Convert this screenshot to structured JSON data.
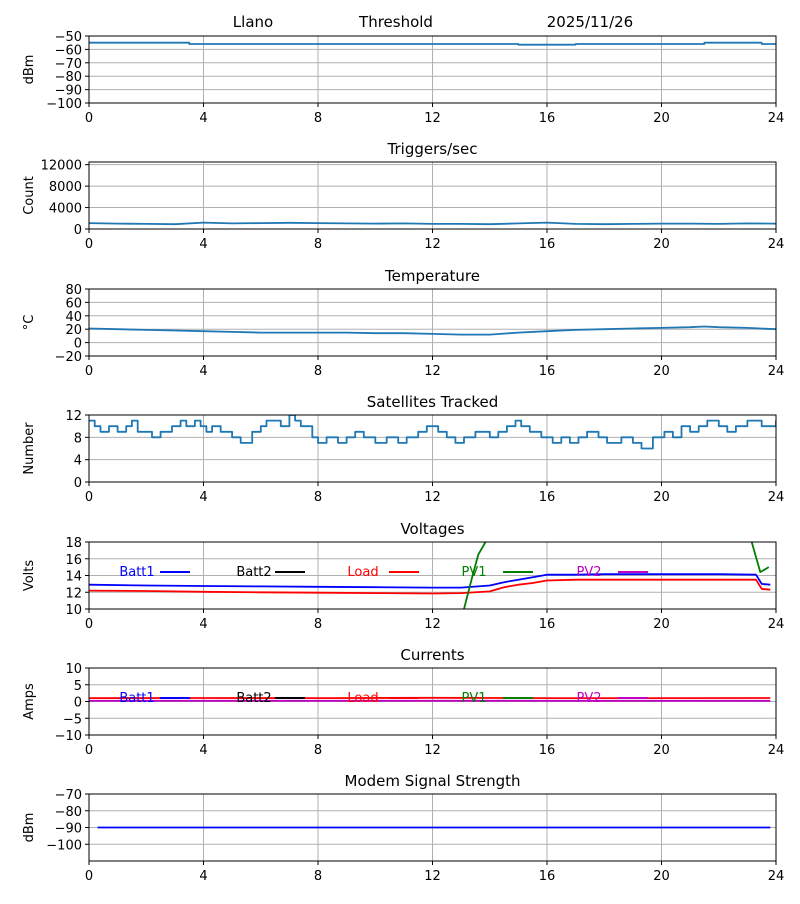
{
  "header": {
    "station": "Llano",
    "mode": "Threshold",
    "date": "2025/11/26"
  },
  "chart_data": [
    {
      "id": "threshold",
      "type": "line",
      "title": "",
      "xlabel": "",
      "ylabel": "dBm",
      "xlim": [
        0,
        24
      ],
      "ylim": [
        -100,
        -50
      ],
      "xticks": [
        "0",
        "4",
        "8",
        "12",
        "16",
        "20",
        "24"
      ],
      "yticks": [
        "−50",
        "−60",
        "−70",
        "−80",
        "−90",
        "−100"
      ],
      "ytick_values": [
        -50,
        -60,
        -70,
        -80,
        -90,
        -100
      ],
      "grid": true,
      "series": [
        {
          "color": "#1f77b4",
          "x": [
            0,
            3.5,
            3.5,
            15,
            15,
            17,
            17,
            21.5,
            21.5,
            23.5,
            23.5,
            24
          ],
          "y": [
            -55,
            -55,
            -56,
            -56,
            -56.5,
            -56.5,
            -56,
            -56,
            -55,
            -55,
            -56,
            -56
          ]
        }
      ]
    },
    {
      "id": "triggers",
      "type": "line",
      "title": "Triggers/sec",
      "xlabel": "",
      "ylabel": "Count",
      "xlim": [
        0,
        24
      ],
      "ylim": [
        0,
        12500
      ],
      "xticks": [
        "0",
        "4",
        "8",
        "12",
        "16",
        "20",
        "24"
      ],
      "yticks": [
        "12000",
        "8000",
        "4000",
        "0"
      ],
      "ytick_values": [
        12000,
        8000,
        4000,
        0
      ],
      "grid": true,
      "series": [
        {
          "color": "#1f77b4",
          "x": [
            0,
            1,
            2,
            3,
            4,
            5,
            6,
            7,
            8,
            9,
            10,
            11,
            12,
            13,
            14,
            15,
            16,
            17,
            18,
            19,
            20,
            21,
            22,
            23,
            24
          ],
          "y": [
            1100,
            1000,
            950,
            900,
            1200,
            1050,
            1100,
            1150,
            1100,
            1050,
            1000,
            1050,
            950,
            950,
            900,
            1050,
            1200,
            950,
            900,
            950,
            1000,
            1000,
            950,
            1050,
            1000
          ]
        }
      ]
    },
    {
      "id": "temperature",
      "type": "line",
      "title": "Temperature",
      "xlabel": "",
      "ylabel": "°C",
      "xlim": [
        0,
        24
      ],
      "ylim": [
        -20,
        80
      ],
      "xticks": [
        "0",
        "4",
        "8",
        "12",
        "16",
        "20",
        "24"
      ],
      "yticks": [
        "80",
        "60",
        "40",
        "20",
        "0",
        "−20"
      ],
      "ytick_values": [
        80,
        60,
        40,
        20,
        0,
        -20
      ],
      "grid": true,
      "series": [
        {
          "color": "#1f77b4",
          "x": [
            0,
            1,
            2,
            3,
            4,
            5,
            6,
            7,
            8,
            9,
            10,
            11,
            12,
            13,
            14,
            15,
            16,
            17,
            18,
            19,
            20,
            21,
            21.5,
            22,
            23,
            24
          ],
          "y": [
            21,
            20,
            19,
            18,
            17,
            16,
            15,
            15,
            15,
            15,
            14,
            14,
            13,
            12,
            12,
            15,
            17,
            19,
            20,
            21,
            22,
            23,
            24,
            23,
            22,
            20
          ]
        }
      ]
    },
    {
      "id": "satellites",
      "type": "line",
      "title": "Satellites Tracked",
      "xlabel": "",
      "ylabel": "Number",
      "xlim": [
        0,
        24
      ],
      "ylim": [
        0,
        12
      ],
      "xticks": [
        "0",
        "4",
        "8",
        "12",
        "16",
        "20",
        "24"
      ],
      "yticks": [
        "12",
        "8",
        "4",
        "0"
      ],
      "ytick_values": [
        12,
        8,
        4,
        0
      ],
      "grid": true,
      "series": [
        {
          "color": "#1f77b4",
          "step": true,
          "x": [
            0,
            0.2,
            0.4,
            0.7,
            1.0,
            1.3,
            1.5,
            1.7,
            2.2,
            2.5,
            2.9,
            3.2,
            3.4,
            3.7,
            3.9,
            4.1,
            4.3,
            4.6,
            5.0,
            5.3,
            5.7,
            6.0,
            6.2,
            6.7,
            7.0,
            7.2,
            7.4,
            7.8,
            8.0,
            8.3,
            8.7,
            9.0,
            9.3,
            9.6,
            10.0,
            10.4,
            10.8,
            11.1,
            11.5,
            11.8,
            12.2,
            12.5,
            12.8,
            13.1,
            13.5,
            14.0,
            14.3,
            14.6,
            14.9,
            15.1,
            15.4,
            15.8,
            16.2,
            16.5,
            16.8,
            17.1,
            17.4,
            17.8,
            18.1,
            18.6,
            19.0,
            19.3,
            19.7,
            20.1,
            20.4,
            20.7,
            21.0,
            21.3,
            21.6,
            22.0,
            22.3,
            22.6,
            23.0,
            23.5,
            24
          ],
          "y": [
            11,
            10,
            9,
            10,
            9,
            10,
            11,
            9,
            8,
            9,
            10,
            11,
            10,
            11,
            10,
            9,
            10,
            9,
            8,
            7,
            9,
            10,
            11,
            10,
            12,
            11,
            10,
            8,
            7,
            8,
            7,
            8,
            9,
            8,
            7,
            8,
            7,
            8,
            9,
            10,
            9,
            8,
            7,
            8,
            9,
            8,
            9,
            10,
            11,
            10,
            9,
            8,
            7,
            8,
            7,
            8,
            9,
            8,
            7,
            8,
            7,
            6,
            8,
            9,
            8,
            10,
            9,
            10,
            11,
            10,
            9,
            10,
            11,
            10,
            11
          ]
        }
      ]
    },
    {
      "id": "voltages",
      "type": "line",
      "title": "Voltages",
      "xlabel": "",
      "ylabel": "Volts",
      "xlim": [
        0,
        24
      ],
      "ylim": [
        10,
        18
      ],
      "xticks": [
        "0",
        "4",
        "8",
        "12",
        "16",
        "20",
        "24"
      ],
      "yticks": [
        "18",
        "16",
        "14",
        "12",
        "10"
      ],
      "ytick_values": [
        18,
        16,
        14,
        12,
        10
      ],
      "grid": true,
      "legend": [
        "Batt1",
        "Batt2",
        "Load",
        "PV1",
        "PV2"
      ],
      "legend_colors": [
        "#0000ff",
        "#000000",
        "#ff0000",
        "#008000",
        "#bf00bf"
      ],
      "series": [
        {
          "name": "Batt1",
          "color": "#0000ff",
          "x": [
            0,
            2,
            4,
            6,
            8,
            10,
            12,
            13,
            14,
            14.5,
            15,
            15.5,
            16,
            17,
            18,
            20,
            22,
            23.3,
            23.5,
            23.8
          ],
          "y": [
            12.9,
            12.8,
            12.75,
            12.7,
            12.65,
            12.6,
            12.55,
            12.55,
            12.8,
            13.2,
            13.5,
            13.8,
            14.1,
            14.1,
            14.15,
            14.15,
            14.15,
            14.1,
            13.0,
            12.9
          ]
        },
        {
          "name": "Load",
          "color": "#ff0000",
          "x": [
            0,
            2,
            4,
            6,
            8,
            10,
            12,
            13,
            14,
            14.5,
            15,
            15.5,
            16,
            17,
            18,
            20,
            22,
            23.3,
            23.5,
            23.8
          ],
          "y": [
            12.2,
            12.15,
            12.05,
            12.0,
            11.95,
            11.9,
            11.85,
            11.9,
            12.1,
            12.6,
            12.9,
            13.1,
            13.4,
            13.5,
            13.5,
            13.5,
            13.5,
            13.5,
            12.4,
            12.3
          ]
        },
        {
          "name": "PV1",
          "color": "#008000",
          "x": [
            13.1,
            13.4,
            13.6,
            13.85
          ],
          "y": [
            10,
            14,
            16.5,
            18
          ]
        },
        {
          "name": "PV1",
          "color": "#008000",
          "x": [
            23.15,
            23.45,
            23.75
          ],
          "y": [
            18,
            14.4,
            15.0
          ]
        }
      ]
    },
    {
      "id": "currents",
      "type": "line",
      "title": "Currents",
      "xlabel": "",
      "ylabel": "Amps",
      "xlim": [
        0,
        24
      ],
      "ylim": [
        -10,
        10
      ],
      "xticks": [
        "0",
        "4",
        "8",
        "12",
        "16",
        "20",
        "24"
      ],
      "yticks": [
        "10",
        "5",
        "0",
        "−5",
        "−10"
      ],
      "ytick_values": [
        10,
        5,
        0,
        -5,
        -10
      ],
      "grid": true,
      "legend": [
        "Batt1",
        "Batt2",
        "Load",
        "PV1",
        "PV2"
      ],
      "legend_colors": [
        "#0000ff",
        "#000000",
        "#ff0000",
        "#008000",
        "#bf00bf"
      ],
      "series": [
        {
          "name": "PV2",
          "color": "#bf00bf",
          "x": [
            0,
            23.8
          ],
          "y": [
            0.2,
            0.2
          ]
        },
        {
          "name": "Load",
          "color": "#ff0000",
          "x": [
            0,
            4,
            8,
            12,
            16,
            20,
            23.8
          ],
          "y": [
            1.0,
            1.05,
            1.0,
            1.1,
            1.0,
            1.0,
            1.05
          ]
        }
      ]
    },
    {
      "id": "modem",
      "type": "line",
      "title": "Modem Signal Strength",
      "xlabel": "",
      "ylabel": "dBm",
      "xlim": [
        0,
        24
      ],
      "ylim": [
        -110,
        -70
      ],
      "xticks": [
        "0",
        "4",
        "8",
        "12",
        "16",
        "20",
        "24"
      ],
      "yticks": [
        "−70",
        "−80",
        "−90",
        "−100"
      ],
      "ytick_values": [
        -70,
        -80,
        -90,
        -100
      ],
      "grid": true,
      "series": [
        {
          "color": "#0000ff",
          "x": [
            0.3,
            23.8
          ],
          "y": [
            -90,
            -90
          ]
        }
      ]
    }
  ]
}
